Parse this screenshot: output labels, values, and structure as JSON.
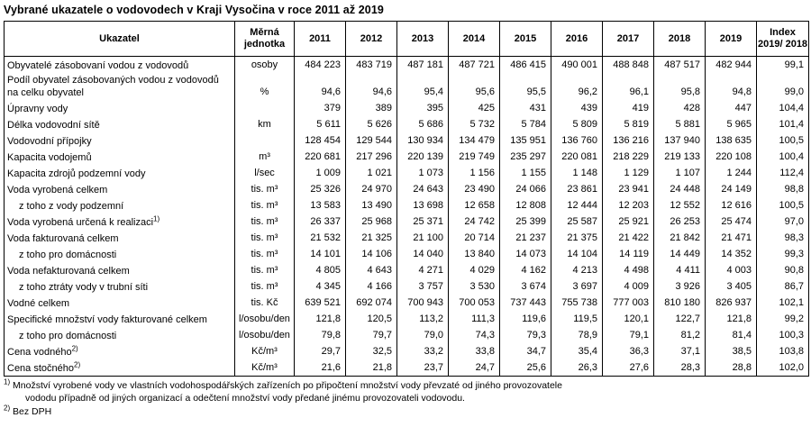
{
  "title": "Vybrané ukazatele o vodovodech v Kraji Vysočina v roce 2011 až 2019",
  "colors": {
    "text": "#000000",
    "border": "#000000",
    "background": "#ffffff"
  },
  "table": {
    "header": {
      "indicator": "Ukazatel",
      "unit_line1": "Měrná",
      "unit_line2": "jednotka",
      "years": [
        "2011",
        "2012",
        "2013",
        "2014",
        "2015",
        "2016",
        "2017",
        "2018",
        "2019"
      ],
      "index_line1": "Index",
      "index_line2": "2019/ 2018"
    },
    "rows": [
      {
        "label": "Obyvatelé zásobovaní vodou z vodovodů",
        "unit": "osoby",
        "indent": false,
        "values": [
          "484 223",
          "483 719",
          "487 181",
          "487 721",
          "486 415",
          "490 001",
          "488 848",
          "487 517",
          "482 944",
          "99,1"
        ]
      },
      {
        "label": "Podíl obyvatel zásobovaných vodou z vodovodů na celku obyvatel",
        "unit": "%",
        "indent": false,
        "values": [
          "94,6",
          "94,6",
          "95,4",
          "95,6",
          "95,5",
          "96,2",
          "96,1",
          "95,8",
          "94,8",
          "99,0"
        ]
      },
      {
        "label": "Úpravny vody",
        "unit": "",
        "indent": false,
        "values": [
          "379",
          "389",
          "395",
          "425",
          "431",
          "439",
          "419",
          "428",
          "447",
          "104,4"
        ]
      },
      {
        "label": "Délka vodovodní sítě",
        "unit": "km",
        "indent": false,
        "values": [
          "5 611",
          "5 626",
          "5 686",
          "5 732",
          "5 784",
          "5 809",
          "5 819",
          "5 881",
          "5 965",
          "101,4"
        ]
      },
      {
        "label": "Vodovodní přípojky",
        "unit": "",
        "indent": false,
        "values": [
          "128 454",
          "129 544",
          "130 934",
          "134 479",
          "135 951",
          "136 760",
          "136 216",
          "137 940",
          "138 635",
          "100,5"
        ]
      },
      {
        "label": "Kapacita vodojemů",
        "unit": "m³",
        "indent": false,
        "values": [
          "220 681",
          "217 296",
          "220 139",
          "219 749",
          "235 297",
          "220 081",
          "218 229",
          "219 133",
          "220 108",
          "100,4"
        ]
      },
      {
        "label": "Kapacita zdrojů podzemní vody",
        "unit": "l/sec",
        "indent": false,
        "values": [
          "1 009",
          "1 021",
          "1 073",
          "1 156",
          "1 155",
          "1 148",
          "1 129",
          "1 107",
          "1 244",
          "112,4"
        ]
      },
      {
        "label": "Voda vyrobená celkem",
        "unit": "tis. m³",
        "indent": false,
        "values": [
          "25 326",
          "24 970",
          "24 643",
          "23 490",
          "24 066",
          "23 861",
          "23 941",
          "24 448",
          "24 149",
          "98,8"
        ]
      },
      {
        "label": "z toho z vody podzemní",
        "unit": "tis. m³",
        "indent": true,
        "values": [
          "13 583",
          "13 490",
          "13 698",
          "12 658",
          "12 808",
          "12 444",
          "12 203",
          "12 552",
          "12 616",
          "100,5"
        ]
      },
      {
        "label": "Voda vyrobená určená k realizaci",
        "footnote_ref": "1)",
        "unit": "tis. m³",
        "indent": false,
        "values": [
          "26 337",
          "25 968",
          "25 371",
          "24 742",
          "25 399",
          "25 587",
          "25 921",
          "26 253",
          "25 474",
          "97,0"
        ]
      },
      {
        "label": "Voda fakturovaná celkem",
        "unit": "tis. m³",
        "indent": false,
        "values": [
          "21 532",
          "21 325",
          "21 100",
          "20 714",
          "21 237",
          "21 375",
          "21 422",
          "21 842",
          "21 471",
          "98,3"
        ]
      },
      {
        "label": "z toho pro domácnosti",
        "unit": "tis. m³",
        "indent": true,
        "values": [
          "14 101",
          "14 106",
          "14 040",
          "13 840",
          "14 073",
          "14 104",
          "14 119",
          "14 449",
          "14 352",
          "99,3"
        ]
      },
      {
        "label": "Voda nefakturovaná celkem",
        "unit": "tis. m³",
        "indent": false,
        "values": [
          "4 805",
          "4 643",
          "4 271",
          "4 029",
          "4 162",
          "4 213",
          "4 498",
          "4 411",
          "4 003",
          "90,8"
        ]
      },
      {
        "label": "z toho ztráty vody v trubní síti",
        "unit": "tis. m³",
        "indent": true,
        "values": [
          "4 345",
          "4 166",
          "3 757",
          "3 530",
          "3 674",
          "3 697",
          "4 009",
          "3 926",
          "3 405",
          "86,7"
        ]
      },
      {
        "label": "Vodné celkem",
        "unit": "tis. Kč",
        "indent": false,
        "values": [
          "639 521",
          "692 074",
          "700 943",
          "700 053",
          "737 443",
          "755 738",
          "777 003",
          "810 180",
          "826 937",
          "102,1"
        ]
      },
      {
        "label": "Specifické množství vody fakturované celkem",
        "unit": "l/osobu/den",
        "indent": false,
        "values": [
          "121,8",
          "120,5",
          "113,2",
          "111,3",
          "119,6",
          "119,5",
          "120,1",
          "122,7",
          "121,8",
          "99,2"
        ]
      },
      {
        "label": "z toho pro domácnosti",
        "unit": "l/osobu/den",
        "indent": true,
        "values": [
          "79,8",
          "79,7",
          "79,0",
          "74,3",
          "79,3",
          "78,9",
          "79,1",
          "81,2",
          "81,4",
          "100,3"
        ]
      },
      {
        "label": "Cena vodného",
        "footnote_ref": "2)",
        "unit": "Kč/m³",
        "indent": false,
        "values": [
          "29,7",
          "32,5",
          "33,2",
          "33,8",
          "34,7",
          "35,4",
          "36,3",
          "37,1",
          "38,5",
          "103,8"
        ]
      },
      {
        "label": "Cena stočného",
        "footnote_ref": "2)",
        "unit": "Kč/m³",
        "indent": false,
        "values": [
          "21,6",
          "21,8",
          "23,7",
          "24,7",
          "25,6",
          "26,3",
          "27,6",
          "28,3",
          "28,8",
          "102,0"
        ]
      }
    ]
  },
  "footnotes": [
    {
      "marker": "1)",
      "lines": [
        "Množství vyrobené vody ve vlastních vodohospodářských zařízeních po připočtení množství vody převzaté od jiného provozovatele",
        "vododu případně od jiných organizací a odečtení množství vody předané jinému provozovateli vodovodu."
      ]
    },
    {
      "marker": "2)",
      "lines": [
        "Bez DPH"
      ]
    }
  ]
}
